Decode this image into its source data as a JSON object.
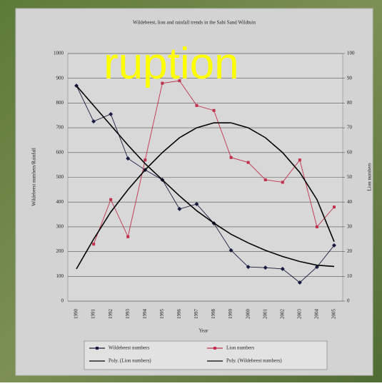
{
  "overlay_text": "ruption",
  "chart_data": {
    "type": "line",
    "title": "Wildebeest, lion and rainfall trends in the Sabi Sand Wildtuin",
    "xlabel": "Year",
    "ylabel": "Wildebeest numbers/Rainfall",
    "y2label": "Lion numbers",
    "categories": [
      "1990",
      "1991",
      "1992",
      "1993",
      "1994",
      "1995",
      "1996",
      "1997",
      "1998",
      "1999",
      "2000",
      "2001",
      "2002",
      "2003",
      "2004",
      "2005"
    ],
    "series": [
      {
        "name": "Wildebeest numbers",
        "color": "#1a1a40",
        "marker": "diamond",
        "values": [
          870,
          726,
          755,
          576,
          530,
          490,
          372,
          392,
          314,
          205,
          138,
          135,
          130,
          75,
          138,
          225
        ]
      },
      {
        "name": "Lion numbers",
        "color": "#c0304a",
        "marker": "square",
        "axis": "y2",
        "values": [
          null,
          23,
          41,
          26,
          57,
          88,
          89,
          79,
          77,
          58,
          56,
          49,
          48,
          57,
          30,
          38
        ]
      },
      {
        "name": "Poly. (Lion numbers)",
        "color": "#000000",
        "axis": "y2",
        "values": [
          13,
          25,
          36,
          45,
          53,
          60,
          66,
          70,
          72,
          72,
          70,
          66,
          60,
          52,
          41,
          24
        ]
      },
      {
        "name": "Poly. (Wildebeest numbers)",
        "color": "#000000",
        "values": [
          870,
          790,
          710,
          630,
          555,
          490,
          425,
          365,
          315,
          270,
          235,
          205,
          180,
          160,
          145,
          140
        ]
      }
    ],
    "ylim": [
      0,
      1000
    ],
    "yticks": [
      0,
      100,
      200,
      300,
      400,
      500,
      600,
      700,
      800,
      900,
      1000
    ],
    "y2lim": [
      0,
      100
    ],
    "y2ticks": [
      0,
      10,
      20,
      30,
      40,
      50,
      60,
      70,
      80,
      90,
      100
    ],
    "grid": true
  }
}
